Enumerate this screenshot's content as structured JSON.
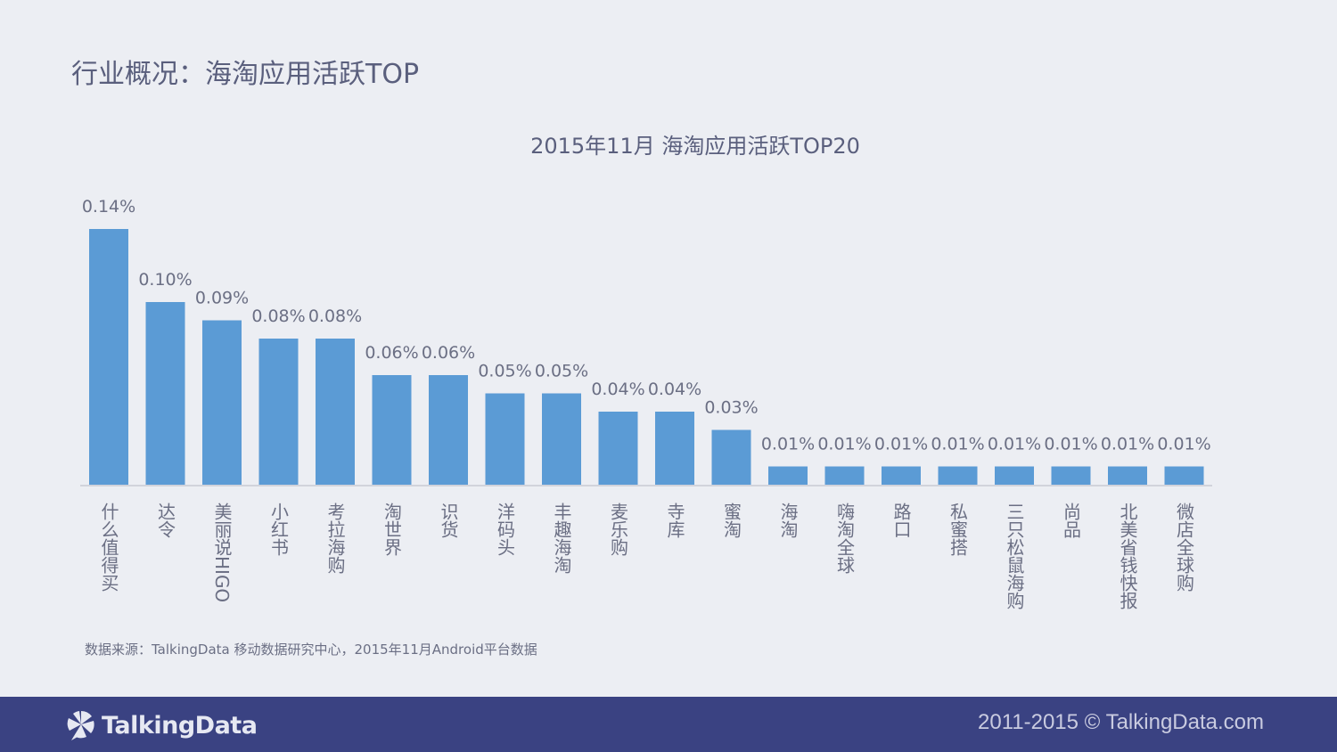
{
  "page_title": "行业概况：海淘应用活跃TOP",
  "footer": {
    "logo_text": "TalkingData",
    "logo_icon": "talkingdata-pinwheel-icon",
    "copyright": "2011-2015 © TalkingData.com",
    "background": "#3a4282"
  },
  "source_note": "数据来源：TalkingData 移动数据研究中心，2015年11月Android平台数据",
  "chart_data": {
    "type": "bar",
    "title": "2015年11月 海淘应用活跃TOP20",
    "xlabel": "",
    "ylabel": "",
    "ylim": [
      0,
      0.14
    ],
    "grid": false,
    "bar_color": "#5b9bd5",
    "categories": [
      "什么值得买",
      "达令",
      "美丽说HIGO",
      "小红书",
      "考拉海购",
      "淘世界",
      "识货",
      "洋码头",
      "丰趣海淘",
      "麦乐购",
      "寺库",
      "蜜淘",
      "海淘",
      "嗨淘全球",
      "路口",
      "私蜜搭",
      "三只松鼠海购",
      "尚品",
      "北美省钱快报",
      "微店全球购"
    ],
    "values": [
      0.14,
      0.1,
      0.09,
      0.08,
      0.08,
      0.06,
      0.06,
      0.05,
      0.05,
      0.04,
      0.04,
      0.03,
      0.01,
      0.01,
      0.01,
      0.01,
      0.01,
      0.01,
      0.01,
      0.01
    ],
    "data_labels": [
      "0.14%",
      "0.10%",
      "0.09%",
      "0.08%",
      "0.08%",
      "0.06%",
      "0.06%",
      "0.05%",
      "0.05%",
      "0.04%",
      "0.04%",
      "0.03%",
      "0.01%",
      "0.01%",
      "0.01%",
      "0.01%",
      "0.01%",
      "0.01%",
      "0.01%",
      "0.01%"
    ]
  }
}
